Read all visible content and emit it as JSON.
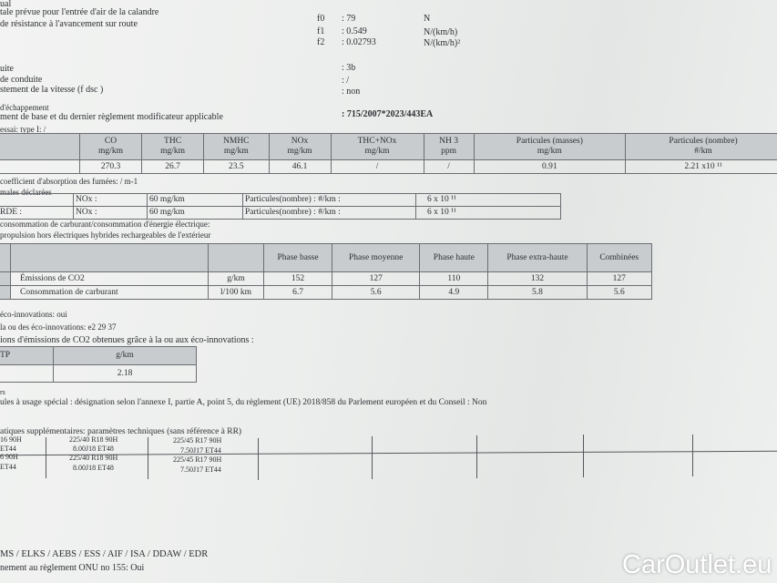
{
  "top_lines": [
    "ual",
    "tale prévue pour l'entrée d'air de la calandre",
    "de résistance à l'avancement sur route"
  ],
  "road_load": [
    {
      "label": "f0",
      "value": ": 79",
      "unit": "N"
    },
    {
      "label": "f1",
      "value": ": 0.549",
      "unit": "N/(km/h)"
    },
    {
      "label": "f2",
      "value": ": 0.02793",
      "unit": "N/(km/h)²"
    }
  ],
  "drive": [
    {
      "label": "uite",
      "value": ": 3b"
    },
    {
      "label": "de conduite",
      "value": ": /"
    },
    {
      "label": "stement de la vitesse (f dsc )",
      "value": ": non"
    }
  ],
  "exhaust": {
    "line1": "d'échappement",
    "line2": "ment de base et du dernier règlement modificateur applicable",
    "value": ": 715/2007*2023/443EA"
  },
  "test_type": "essai: type I: /",
  "emissions_table": {
    "headers": [
      [
        "CO",
        "mg/km"
      ],
      [
        "THC",
        "mg/km"
      ],
      [
        "NMHC",
        "mg/km"
      ],
      [
        "NOx",
        "mg/km"
      ],
      [
        "THC+NOx",
        "mg/km"
      ],
      [
        "NH 3",
        "ppm"
      ],
      [
        "Particules (masses)",
        "mg/km"
      ],
      [
        "Particules (nombre)",
        "#/km"
      ]
    ],
    "values": [
      "270.3",
      "26.7",
      "23.5",
      "46.1",
      "/",
      "/",
      "0.91",
      "2.21 x10 ¹¹"
    ]
  },
  "smoke": "coefficient d'absorption des fumées: / m-1",
  "declared_label": "males déclarées",
  "declared_table": [
    [
      "",
      "NOx :",
      "60 mg/km",
      "Particules(nombre) : #/km :",
      "6 x 10 ¹¹"
    ],
    [
      "RDE    :",
      "NOx :",
      "60 mg/km",
      "Particules(nombre) : #/km :",
      "6 x 10 ¹¹"
    ]
  ],
  "consumption_line1": "consommation de carburant/consommation d'énergie électrique:",
  "consumption_line2": "propulsion hors électriques hybrides rechargeables de l'extérieur",
  "co2_table": {
    "headers": [
      "Phase basse",
      "Phase moyenne",
      "Phase haute",
      "Phase extra-haute",
      "Combinées"
    ],
    "rows": [
      {
        "label": "Émissions de CO2",
        "unit": "g/km",
        "values": [
          "152",
          "127",
          "110",
          "132",
          "127"
        ]
      },
      {
        "label": "Consommation de carburant",
        "unit": "l/100 km",
        "values": [
          "6.7",
          "5.6",
          "4.9",
          "5.8",
          "5.6"
        ]
      }
    ]
  },
  "eco": [
    "éco-innovations: oui",
    "la ou des éco-innovations: e2 29 37",
    "ions d'émissions de CO2 obtenues grâce à la ou aux éco-innovations :"
  ],
  "eco_table": {
    "h1": "TP",
    "h2": "g/km",
    "v": "2.18"
  },
  "rs": "rs",
  "special": "ules à usage spécial : désignation selon l'annexe I, partie A, point 5, du règlement (UE) 2018/858 du Parlement européen et du Conseil : Non",
  "extra_title": "atiques supplémentaires: paramètres techniques (sans référence à RR)",
  "tyres": [
    [
      "16 90H",
      "ET44",
      "225/40 R18 90H",
      "8.00J18 ET48",
      "225/45 R17 90H",
      "7.50J17 ET44"
    ],
    [
      "6 90H",
      "ET44",
      "225/40 R18 90H",
      "8.00J18 ET48",
      "225/45 R17 90H",
      "7.50J17 ET44"
    ]
  ],
  "bottom": [
    "MS / ELKS / AEBS / ESS / AIF / ISA / DDAW / EDR",
    "nement au règlement ONU no 155: Oui"
  ],
  "watermark": "CarOutlet.eu"
}
